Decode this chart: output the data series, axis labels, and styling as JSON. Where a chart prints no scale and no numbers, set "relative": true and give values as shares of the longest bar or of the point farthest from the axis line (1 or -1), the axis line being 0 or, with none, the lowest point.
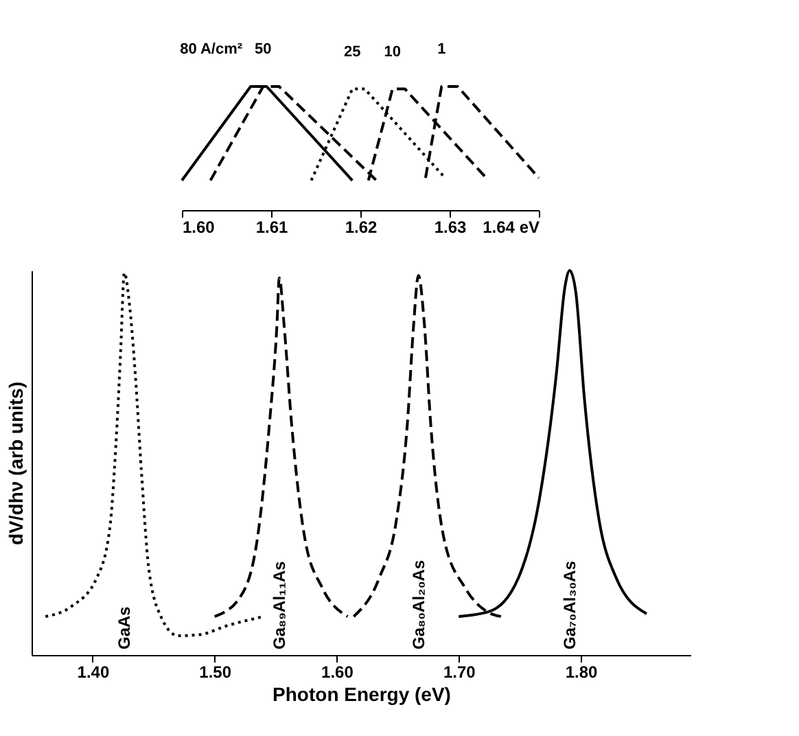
{
  "chart_data": [
    {
      "type": "line",
      "relative": true,
      "xlim": [
        1.6,
        1.64
      ],
      "xticks": [
        {
          "value": 1.6,
          "label": "1.60"
        },
        1.61,
        1.62,
        1.63,
        {
          "value": 1.64,
          "label": "1.64 eV"
        }
      ],
      "series": [
        {
          "name": "80 A/cm²",
          "color": "#000000",
          "line_style": "solid",
          "x": [
            1.6,
            1.6077,
            1.6095,
            1.6191
          ],
          "values": [
            0.24,
            1.0,
            1.0,
            0.24
          ]
        },
        {
          "name": "50",
          "color": "#000000",
          "line_style": "dashed",
          "x": [
            1.6032,
            1.6091,
            1.6109,
            1.6218
          ],
          "values": [
            0.24,
            1.0,
            1.0,
            0.24
          ]
        },
        {
          "name": "25",
          "color": "#000000",
          "line_style": "dotted",
          "x": [
            1.6145,
            1.6191,
            1.6205,
            1.6295
          ],
          "values": [
            0.24,
            0.98,
            0.98,
            0.26
          ]
        },
        {
          "name": "10",
          "color": "#000000",
          "line_style": "dashed",
          "x": [
            1.6209,
            1.6236,
            1.625,
            1.6341
          ],
          "values": [
            0.24,
            0.98,
            0.98,
            0.26
          ]
        },
        {
          "name": "1",
          "color": "#000000",
          "line_style": "dashed",
          "x": [
            1.6273,
            1.6291,
            1.6309,
            1.64
          ],
          "values": [
            0.26,
            1.0,
            1.0,
            0.26
          ]
        }
      ]
    },
    {
      "type": "line",
      "relative": true,
      "xlabel": "Photon Energy (eV)",
      "ylabel": "dV/dhν (arb units)",
      "xlim": [
        1.35,
        1.89
      ],
      "xticks": [
        {
          "value": 1.4,
          "label": "1.40"
        },
        {
          "value": 1.5,
          "label": "1.50"
        },
        {
          "value": 1.6,
          "label": "1.60"
        },
        {
          "value": 1.7,
          "label": "1.70"
        },
        {
          "value": 1.8,
          "label": "1.80"
        }
      ],
      "series": [
        {
          "name": "GaAs",
          "color": "#000000",
          "line_style": "dotted",
          "x": [
            1.3614,
            1.3825,
            1.4035,
            1.414,
            1.419,
            1.423,
            1.426,
            1.43,
            1.435,
            1.44,
            1.446,
            1.456,
            1.47,
            1.488,
            1.509,
            1.54
          ],
          "values": [
            0.1,
            0.126,
            0.201,
            0.327,
            0.541,
            0.79,
            0.994,
            0.918,
            0.73,
            0.478,
            0.226,
            0.1,
            0.05,
            0.053,
            0.075,
            0.1
          ]
        },
        {
          "name": "Ga₈₉Al₁₁As",
          "color": "#000000",
          "line_style": "dashed",
          "x": [
            1.5,
            1.521,
            1.535,
            1.545,
            1.551,
            1.553,
            1.557,
            1.563,
            1.574,
            1.588,
            1.609
          ],
          "values": [
            0.1,
            0.151,
            0.302,
            0.604,
            0.855,
            0.981,
            0.855,
            0.604,
            0.302,
            0.176,
            0.1
          ]
        },
        {
          "name": "Ga₈₀Al₂₀As",
          "color": "#000000",
          "line_style": "dashed",
          "x": [
            1.614,
            1.635,
            1.649,
            1.658,
            1.663,
            1.667,
            1.672,
            1.677,
            1.688,
            1.705,
            1.723,
            1.735
          ],
          "values": [
            0.1,
            0.201,
            0.352,
            0.604,
            0.855,
            0.987,
            0.855,
            0.604,
            0.302,
            0.176,
            0.113,
            0.1
          ]
        },
        {
          "name": "Ga₇₀Al₃₀As",
          "color": "#000000",
          "line_style": "solid",
          "x": [
            1.7,
            1.725,
            1.749,
            1.766,
            1.78,
            1.787,
            1.791,
            1.796,
            1.803,
            1.815,
            1.829,
            1.854
          ],
          "values": [
            0.1,
            0.113,
            0.201,
            0.403,
            0.73,
            0.956,
            1.0,
            0.943,
            0.667,
            0.352,
            0.201,
            0.107
          ]
        }
      ]
    }
  ]
}
